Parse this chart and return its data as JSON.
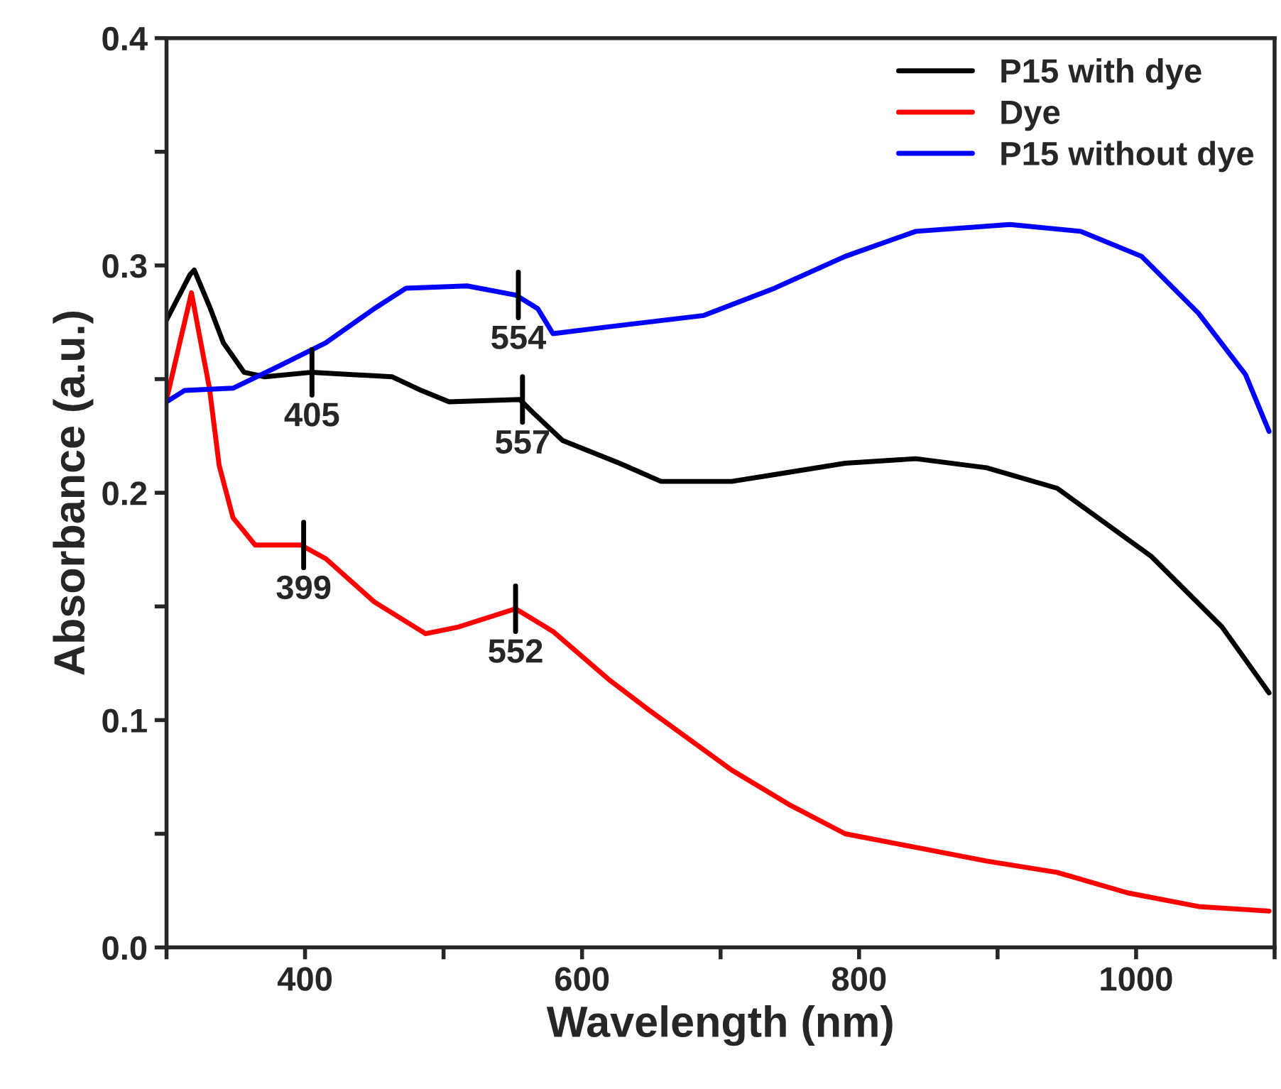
{
  "chart_data": {
    "type": "line",
    "xlabel": "Wavelength (nm)",
    "ylabel": "Absorbance (a.u.)",
    "xlim": [
      300,
      1100
    ],
    "ylim": [
      0,
      0.4
    ],
    "xticks": [
      {
        "value": 300,
        "label": null
      },
      400,
      {
        "value": 500,
        "label": null
      },
      600,
      {
        "value": 700,
        "label": null
      },
      800,
      {
        "value": 900,
        "label": null
      },
      1000,
      {
        "value": 1100,
        "label": null
      }
    ],
    "yticks": [
      {
        "value": 0,
        "label": "0.0"
      },
      {
        "value": 0.05,
        "label": null
      },
      0.1,
      {
        "value": 0.15,
        "label": null
      },
      0.2,
      {
        "value": 0.25,
        "label": null
      },
      0.3,
      {
        "value": 0.35,
        "label": null
      },
      0.4
    ],
    "grid": false,
    "legend": "top right",
    "marker": "none",
    "line_style": "solid",
    "series": [
      {
        "name": "P15 with dye",
        "color": "#000000",
        "x": [
          300,
          317,
          320,
          331,
          341,
          356,
          371,
          405,
          463,
          484,
          504,
          555,
          565,
          586,
          627,
          657,
          708,
          739,
          790,
          841,
          892,
          943,
          1011,
          1062,
          1096
        ],
        "values": [
          0.276,
          0.296,
          0.298,
          0.282,
          0.266,
          0.253,
          0.251,
          0.253,
          0.251,
          0.245,
          0.24,
          0.241,
          0.235,
          0.223,
          0.213,
          0.205,
          0.205,
          0.208,
          0.213,
          0.215,
          0.211,
          0.202,
          0.172,
          0.141,
          0.112
        ]
      },
      {
        "name": "Dye",
        "color": "#ff0000",
        "x": [
          300,
          318,
          326,
          331,
          338,
          348,
          364,
          397,
          415,
          450,
          487,
          511,
          552,
          579,
          619,
          647,
          708,
          749,
          790,
          841,
          892,
          943,
          994,
          1045,
          1096
        ],
        "values": [
          0.241,
          0.288,
          0.262,
          0.246,
          0.212,
          0.189,
          0.177,
          0.177,
          0.171,
          0.152,
          0.138,
          0.141,
          0.149,
          0.139,
          0.118,
          0.105,
          0.078,
          0.063,
          0.05,
          0.044,
          0.038,
          0.033,
          0.024,
          0.018,
          0.016
        ]
      },
      {
        "name": "P15 without dye",
        "color": "#0000ff",
        "x": [
          300,
          313,
          348,
          382,
          415,
          450,
          473,
          517,
          552,
          568,
          579,
          619,
          688,
          739,
          790,
          841,
          909,
          960,
          1004,
          1045,
          1079,
          1096
        ],
        "values": [
          0.24,
          0.245,
          0.246,
          0.256,
          0.266,
          0.281,
          0.29,
          0.291,
          0.287,
          0.281,
          0.27,
          0.273,
          0.278,
          0.29,
          0.304,
          0.315,
          0.318,
          0.315,
          0.304,
          0.279,
          0.252,
          0.227
        ]
      }
    ],
    "annotations": [
      {
        "text": "405",
        "x": 405,
        "y": 0.253
      },
      {
        "text": "557",
        "x": 557,
        "y": 0.241
      },
      {
        "text": "554",
        "x": 554,
        "y": 0.287
      },
      {
        "text": "399",
        "x": 399,
        "y": 0.177
      },
      {
        "text": "552",
        "x": 552,
        "y": 0.149
      }
    ]
  }
}
